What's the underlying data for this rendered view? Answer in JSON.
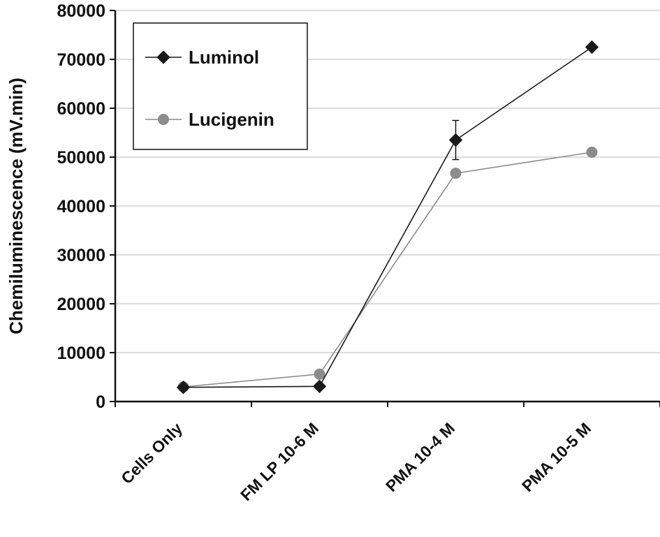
{
  "chart_data": {
    "type": "line",
    "categories": [
      "Cells Only",
      "FM LP 10-6 M",
      "PMA 10-4 M",
      "PMA 10-5 M"
    ],
    "series": [
      {
        "name": "Luminol",
        "values": [
          2900,
          3100,
          53500,
          72500
        ],
        "error": [
          0,
          0,
          4000,
          0
        ],
        "color": "#1a1a1a",
        "marker": "diamond"
      },
      {
        "name": "Lucigenin",
        "values": [
          3000,
          5600,
          46700,
          51000
        ],
        "error": [
          0,
          0,
          0,
          0
        ],
        "color": "#8c8c8c",
        "marker": "circle"
      }
    ],
    "ylabel": "Chemiluminescence (mV.min)",
    "xlabel": "",
    "ylim": [
      0,
      80000
    ],
    "yticks": [
      0,
      10000,
      20000,
      30000,
      40000,
      50000,
      60000,
      70000,
      80000
    ],
    "grid": true,
    "legend_position": "top-left"
  }
}
